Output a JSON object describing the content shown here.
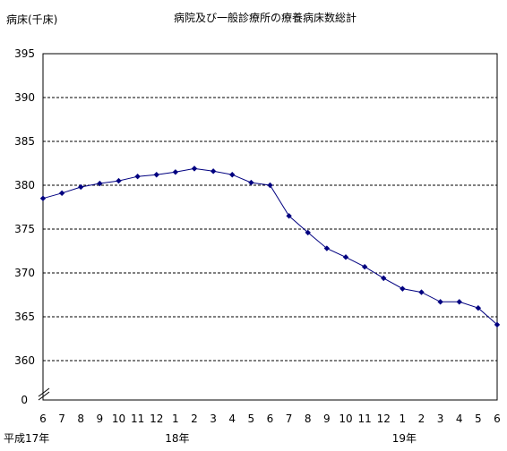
{
  "chart_data": {
    "type": "line",
    "title": "病院及び一般診療所の療養病床数総計",
    "ylabel": "病床(千床)",
    "ylim": [
      360,
      395
    ],
    "yticks": [
      "395",
      "390",
      "385",
      "380",
      "375",
      "370",
      "365",
      "360"
    ],
    "y_zero_label": "0",
    "axis_break": true,
    "grid": true,
    "grid_style": "dashed",
    "line_color": "#000080",
    "categories": [
      "6",
      "7",
      "8",
      "9",
      "10",
      "11",
      "12",
      "1",
      "2",
      "3",
      "4",
      "5",
      "6",
      "7",
      "8",
      "9",
      "10",
      "11",
      "12",
      "1",
      "2",
      "3",
      "4",
      "5",
      "6"
    ],
    "year_labels": [
      {
        "index": 0,
        "text": "平成17年"
      },
      {
        "index": 7,
        "text": "18年"
      },
      {
        "index": 19,
        "text": "19年"
      }
    ],
    "series": [
      {
        "values": [
          378.5,
          379.1,
          379.8,
          380.2,
          380.5,
          381.0,
          381.2,
          381.5,
          381.9,
          381.6,
          381.2,
          380.3,
          380.0,
          376.5,
          374.6,
          372.8,
          371.8,
          370.7,
          369.4,
          368.2,
          367.8,
          366.7,
          366.7,
          366.0,
          364.1
        ]
      }
    ]
  }
}
